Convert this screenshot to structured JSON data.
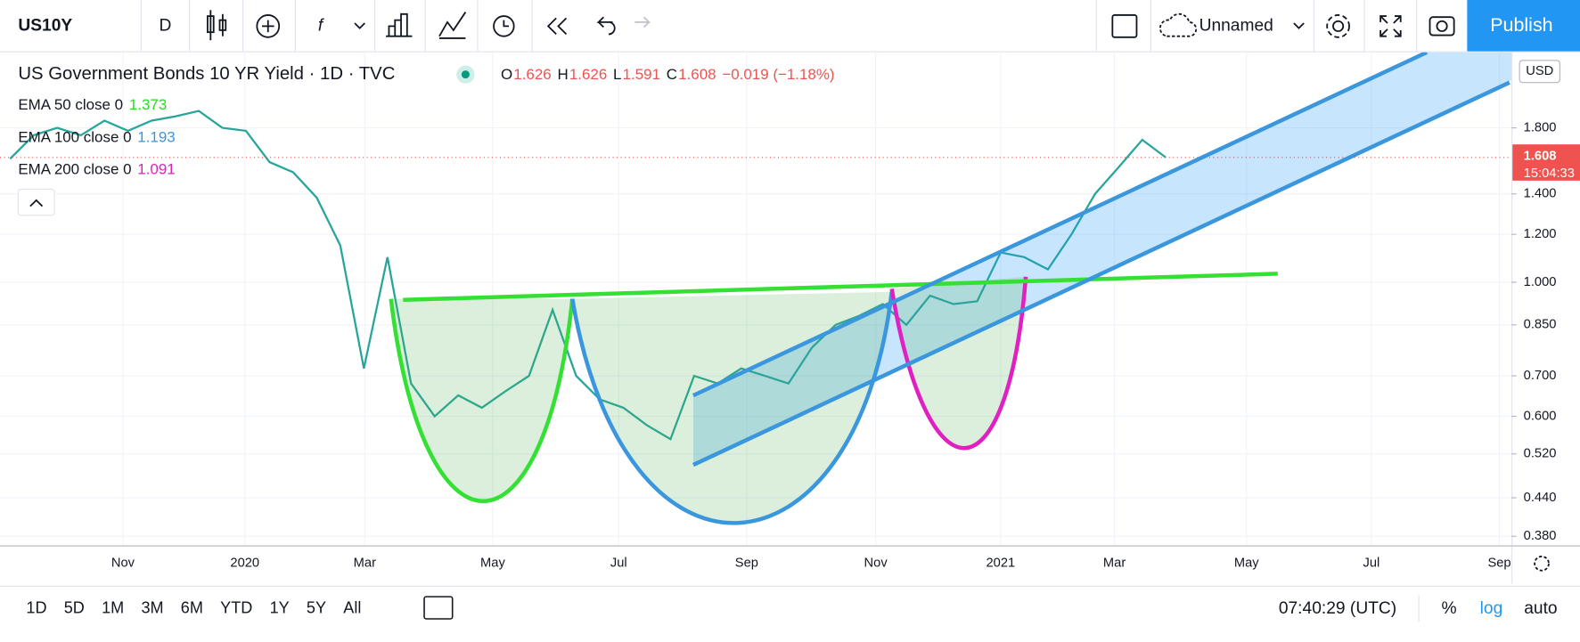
{
  "toolbar": {
    "symbol": "US10Y",
    "interval": "D",
    "layout_name": "Unnamed",
    "publish": "Publish"
  },
  "legend": {
    "title": "US Government Bonds 10 YR Yield · 1D · TVC",
    "ohlc": [
      {
        "label": "O",
        "value": "1.626"
      },
      {
        "label": "H",
        "value": "1.626"
      },
      {
        "label": "L",
        "value": "1.591"
      },
      {
        "label": "C",
        "value": "1.608"
      }
    ],
    "change": "−0.019 (−1.18%)",
    "indicators": [
      {
        "name": "EMA 50 close 0",
        "value": 1.373,
        "color": "#22dd22"
      },
      {
        "name": "EMA 100 close 0",
        "value": 1.193,
        "color": "#3a96dd"
      },
      {
        "name": "EMA 200 close 0",
        "value": 1.091,
        "color": "#dd22bb"
      }
    ]
  },
  "chart_data": {
    "type": "line",
    "log_scale": true,
    "grid": true,
    "color": "#26a69a",
    "values": [
      1.6,
      1.75,
      1.8,
      1.75,
      1.85,
      1.78,
      1.85,
      1.88,
      1.92,
      1.8,
      1.78,
      1.58,
      1.52,
      1.38,
      1.15,
      0.72,
      1.1,
      0.68,
      0.6,
      0.65,
      0.62,
      0.66,
      0.7,
      0.9,
      0.7,
      0.64,
      0.62,
      0.58,
      0.55,
      0.7,
      0.68,
      0.72,
      0.7,
      0.68,
      0.78,
      0.85,
      0.88,
      0.92,
      0.85,
      0.95,
      0.92,
      0.93,
      1.12,
      1.1,
      1.05,
      1.2,
      1.4,
      1.55,
      1.72,
      1.608
    ],
    "ylim": [
      0.367,
      2.4
    ],
    "yticks": [
      {
        "value": 0.38,
        "label": "0.380"
      },
      {
        "value": 0.44,
        "label": "0.440"
      },
      {
        "value": 0.52,
        "label": "0.520"
      },
      {
        "value": 0.6,
        "label": "0.600"
      },
      {
        "value": 0.7,
        "label": "0.700"
      },
      {
        "value": 0.85,
        "label": "0.850"
      },
      {
        "value": 1,
        "label": "1.000"
      },
      {
        "value": 1.2,
        "label": "1.200"
      },
      {
        "value": 1.4,
        "label": "1.400"
      },
      {
        "value": 1.8,
        "label": "1.800"
      }
    ],
    "last_price_label": "1.608",
    "countdown": "15:04:33",
    "currency": "USD",
    "xticks": [
      "Nov",
      "2020",
      "Mar",
      "May",
      "Jul",
      "Sep",
      "Nov",
      "2021",
      "Mar",
      "May",
      "Jul",
      "Sep"
    ]
  },
  "bottom_bar": {
    "ranges": [
      "1D",
      "5D",
      "1M",
      "3M",
      "6M",
      "YTD",
      "1Y",
      "5Y",
      "All"
    ],
    "clock": "07:40:29 (UTC)",
    "percent": "%",
    "log": "log",
    "auto": "auto"
  }
}
